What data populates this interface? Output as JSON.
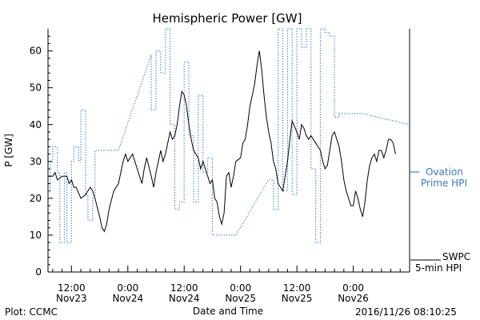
{
  "chart_data": {
    "type": "line",
    "title": "Hemispheric Power [GW]",
    "xlabel": "Date and Time",
    "ylabel": "P [GW]",
    "ylim": [
      0,
      66
    ],
    "xlim_hours": [
      0,
      77
    ],
    "yticks": [
      0,
      10,
      20,
      30,
      40,
      50,
      60
    ],
    "xticks": [
      {
        "h": 5,
        "line1": "12:00",
        "line2": "Nov23"
      },
      {
        "h": 17,
        "line1": "0:00",
        "line2": "Nov24"
      },
      {
        "h": 29,
        "line1": "12:00",
        "line2": "Nov24"
      },
      {
        "h": 41,
        "line1": "0:00",
        "line2": "Nov25"
      },
      {
        "h": 53,
        "line1": "12:00",
        "line2": "Nov25"
      },
      {
        "h": 65,
        "line1": "0:00",
        "line2": "Nov26"
      }
    ],
    "grid": false,
    "legend_position": "right",
    "series": [
      {
        "name": "Ovation Prime HPI",
        "style": "dotted",
        "color": "#3b78c9",
        "points": [
          [
            0,
            22
          ],
          [
            0.5,
            22
          ],
          [
            0.5,
            30
          ],
          [
            1,
            30
          ],
          [
            1,
            34
          ],
          [
            2,
            34
          ],
          [
            2,
            27
          ],
          [
            2.5,
            27
          ],
          [
            2.5,
            8
          ],
          [
            3.5,
            8
          ],
          [
            3.5,
            27
          ],
          [
            4,
            27
          ],
          [
            4,
            8
          ],
          [
            5,
            8
          ],
          [
            5,
            30
          ],
          [
            5.5,
            30
          ],
          [
            5.5,
            34
          ],
          [
            6.5,
            34
          ],
          [
            6.5,
            30
          ],
          [
            7,
            30
          ],
          [
            7,
            44
          ],
          [
            8,
            44
          ],
          [
            8,
            21
          ],
          [
            8.5,
            21
          ],
          [
            8.5,
            14
          ],
          [
            9.5,
            14
          ],
          [
            9.5,
            20
          ],
          [
            10,
            20
          ],
          [
            10,
            33
          ],
          [
            15,
            33
          ],
          [
            22,
            59
          ],
          [
            22,
            44
          ],
          [
            23,
            44
          ],
          [
            23,
            60
          ],
          [
            24,
            60
          ],
          [
            24,
            54
          ],
          [
            25,
            54
          ],
          [
            25,
            66
          ],
          [
            26,
            66
          ],
          [
            26,
            40
          ],
          [
            27,
            40
          ],
          [
            27,
            17
          ],
          [
            28,
            17
          ],
          [
            28,
            19
          ],
          [
            29,
            19
          ],
          [
            29,
            57
          ],
          [
            30,
            57
          ],
          [
            30,
            37
          ],
          [
            31,
            37
          ],
          [
            31,
            19
          ],
          [
            32,
            19
          ],
          [
            32,
            48
          ],
          [
            33,
            48
          ],
          [
            33,
            27
          ],
          [
            34,
            27
          ],
          [
            34,
            31
          ],
          [
            35,
            31
          ],
          [
            35,
            10
          ],
          [
            40,
            10
          ],
          [
            47,
            25
          ],
          [
            48,
            25
          ],
          [
            48,
            17
          ],
          [
            49,
            17
          ],
          [
            49,
            66
          ],
          [
            50,
            66
          ],
          [
            50,
            22
          ],
          [
            51,
            22
          ],
          [
            51,
            66
          ],
          [
            52,
            66
          ],
          [
            52,
            21
          ],
          [
            53,
            21
          ],
          [
            53,
            66
          ],
          [
            54,
            66
          ],
          [
            54,
            61
          ],
          [
            55,
            61
          ],
          [
            55,
            66
          ],
          [
            56,
            66
          ],
          [
            56,
            28
          ],
          [
            57,
            28
          ],
          [
            57,
            8
          ],
          [
            58,
            8
          ],
          [
            58,
            66
          ],
          [
            59,
            66
          ],
          [
            59,
            65
          ],
          [
            60,
            65
          ],
          [
            60,
            64
          ],
          [
            61,
            64
          ],
          [
            61,
            42
          ],
          [
            62,
            42
          ],
          [
            62,
            43
          ],
          [
            67,
            43
          ],
          [
            77,
            40
          ]
        ]
      },
      {
        "name": "SWPC 5-min HPI",
        "style": "solid",
        "color": "#000000",
        "points": [
          [
            0,
            26
          ],
          [
            1,
            26
          ],
          [
            1.5,
            27
          ],
          [
            2,
            25
          ],
          [
            3,
            26
          ],
          [
            4,
            26
          ],
          [
            4.5,
            24
          ],
          [
            5,
            25
          ],
          [
            5.5,
            23
          ],
          [
            6,
            23
          ],
          [
            7,
            20
          ],
          [
            8,
            21
          ],
          [
            9,
            23
          ],
          [
            9.5,
            22
          ],
          [
            10,
            20
          ],
          [
            11,
            15
          ],
          [
            11.5,
            12
          ],
          [
            12,
            11
          ],
          [
            12.5,
            13
          ],
          [
            13,
            17
          ],
          [
            14,
            22
          ],
          [
            15,
            24
          ],
          [
            16,
            30
          ],
          [
            16.5,
            32
          ],
          [
            17,
            30
          ],
          [
            18,
            32
          ],
          [
            18.5,
            30
          ],
          [
            19,
            28
          ],
          [
            20,
            24
          ],
          [
            20.5,
            28
          ],
          [
            21,
            31
          ],
          [
            22,
            26
          ],
          [
            22.5,
            23
          ],
          [
            23,
            27
          ],
          [
            24,
            33
          ],
          [
            24.5,
            30
          ],
          [
            25,
            32
          ],
          [
            26,
            38
          ],
          [
            26.5,
            36
          ],
          [
            27,
            37
          ],
          [
            27.5,
            40
          ],
          [
            28,
            45
          ],
          [
            28.5,
            49
          ],
          [
            29,
            48
          ],
          [
            29.5,
            45
          ],
          [
            30,
            40
          ],
          [
            30.5,
            36
          ],
          [
            31,
            33
          ],
          [
            32,
            31
          ],
          [
            32.5,
            28
          ],
          [
            33,
            30
          ],
          [
            34,
            26
          ],
          [
            34.5,
            24
          ],
          [
            35,
            25
          ],
          [
            35.5,
            20
          ],
          [
            36,
            19
          ],
          [
            36.5,
            15
          ],
          [
            37,
            13
          ],
          [
            37.5,
            16
          ],
          [
            38,
            26
          ],
          [
            38.5,
            27
          ],
          [
            39,
            23
          ],
          [
            39.5,
            26
          ],
          [
            40,
            30
          ],
          [
            41,
            31
          ],
          [
            41.5,
            35
          ],
          [
            42,
            36
          ],
          [
            42.5,
            40
          ],
          [
            43,
            45
          ],
          [
            43.5,
            48
          ],
          [
            44,
            51
          ],
          [
            44.5,
            56
          ],
          [
            45,
            60
          ],
          [
            45.5,
            55
          ],
          [
            46,
            48
          ],
          [
            46.5,
            42
          ],
          [
            47,
            38
          ],
          [
            47.5,
            35
          ],
          [
            48,
            30
          ],
          [
            48.5,
            28
          ],
          [
            49,
            24
          ],
          [
            49.5,
            23
          ],
          [
            50,
            22
          ],
          [
            50.5,
            26
          ],
          [
            51,
            30
          ],
          [
            51.5,
            36
          ],
          [
            52,
            41
          ],
          [
            53,
            38
          ],
          [
            53.5,
            36
          ],
          [
            54,
            40
          ],
          [
            54.5,
            39
          ],
          [
            55,
            37
          ],
          [
            55.5,
            36
          ],
          [
            56,
            37
          ],
          [
            57,
            35
          ],
          [
            57.5,
            34
          ],
          [
            58,
            33
          ],
          [
            58.5,
            30
          ],
          [
            59,
            28
          ],
          [
            59.5,
            29
          ],
          [
            60,
            33
          ],
          [
            60.5,
            37
          ],
          [
            61,
            38
          ],
          [
            61.5,
            36
          ],
          [
            62,
            34
          ],
          [
            62.5,
            30
          ],
          [
            63,
            25
          ],
          [
            63.5,
            22
          ],
          [
            64,
            20
          ],
          [
            64.5,
            18
          ],
          [
            65,
            18
          ],
          [
            65.5,
            22
          ],
          [
            66,
            20
          ],
          [
            66.5,
            17
          ],
          [
            67,
            15
          ],
          [
            67.5,
            19
          ],
          [
            68,
            25
          ],
          [
            68.5,
            29
          ],
          [
            69,
            31
          ],
          [
            69.5,
            32
          ],
          [
            70,
            30
          ],
          [
            70.5,
            33
          ],
          [
            71,
            33
          ],
          [
            71.5,
            31
          ],
          [
            72,
            33
          ],
          [
            72.5,
            36
          ],
          [
            73,
            36
          ],
          [
            73.5,
            35
          ],
          [
            74,
            32
          ]
        ]
      }
    ],
    "legend": {
      "ovation_line1": "Ovation",
      "ovation_line2": "Prime HPI",
      "swpc_line1": "SWPC",
      "swpc_line2": "5-min HPI"
    }
  },
  "footer": {
    "plot_credit": "Plot: CCMC",
    "timestamp": "2016/11/26 08:10:25"
  }
}
